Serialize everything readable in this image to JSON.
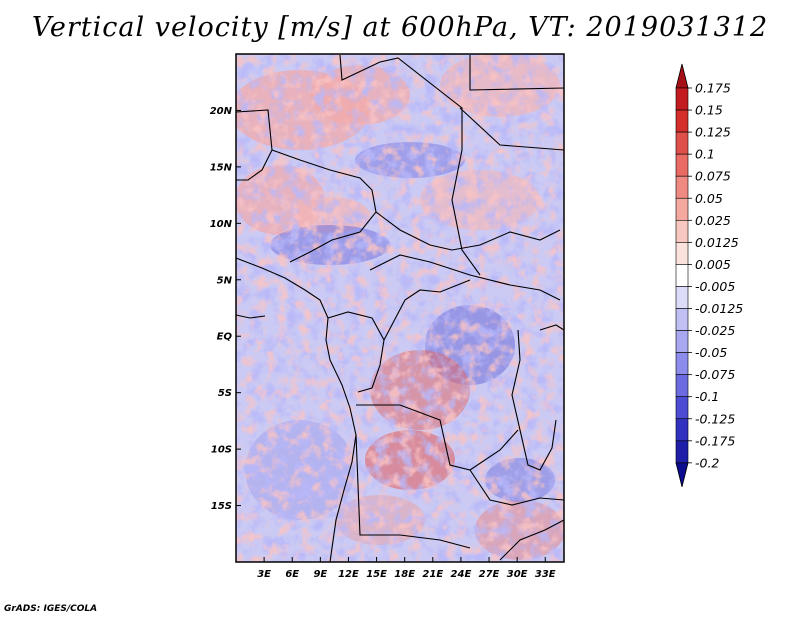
{
  "title": "Vertical velocity [m/s] at 600hPa, VT: 2019031312",
  "credit": "GrADS: IGES/COLA",
  "map": {
    "lon_range": [
      0,
      35
    ],
    "lat_range": [
      -20,
      25
    ],
    "lat_ticks": [
      {
        "value": 20,
        "label": "20N"
      },
      {
        "value": 15,
        "label": "15N"
      },
      {
        "value": 10,
        "label": "10N"
      },
      {
        "value": 5,
        "label": "5N"
      },
      {
        "value": 0,
        "label": "EQ"
      },
      {
        "value": -5,
        "label": "5S"
      },
      {
        "value": -10,
        "label": "10S"
      },
      {
        "value": -15,
        "label": "15S"
      }
    ],
    "lon_ticks": [
      {
        "value": 3,
        "label": "3E"
      },
      {
        "value": 6,
        "label": "6E"
      },
      {
        "value": 9,
        "label": "9E"
      },
      {
        "value": 12,
        "label": "12E"
      },
      {
        "value": 15,
        "label": "15E"
      },
      {
        "value": 18,
        "label": "18E"
      },
      {
        "value": 21,
        "label": "21E"
      },
      {
        "value": 24,
        "label": "24E"
      },
      {
        "value": 27,
        "label": "27E"
      },
      {
        "value": 30,
        "label": "30E"
      },
      {
        "value": 33,
        "label": "33E"
      }
    ]
  },
  "colorbar": {
    "labels": [
      "0.175",
      "0.15",
      "0.125",
      "0.1",
      "0.075",
      "0.05",
      "0.025",
      "0.0125",
      "0.005",
      "-0.005",
      "-0.0125",
      "-0.025",
      "-0.05",
      "-0.075",
      "-0.1",
      "-0.125",
      "-0.175",
      "-0.2"
    ],
    "colors": [
      "#a50f15",
      "#c21b20",
      "#d52f2c",
      "#e0504a",
      "#e96b64",
      "#ef8a82",
      "#f4a8a0",
      "#f8c8c0",
      "#fbe2dc",
      "#ffffff",
      "#dcdcf8",
      "#c0c0f4",
      "#a8a8f0",
      "#8c8cec",
      "#6c6ce0",
      "#4c4cd4",
      "#3232c0",
      "#1e1ea8",
      "#0c0c90"
    ]
  }
}
